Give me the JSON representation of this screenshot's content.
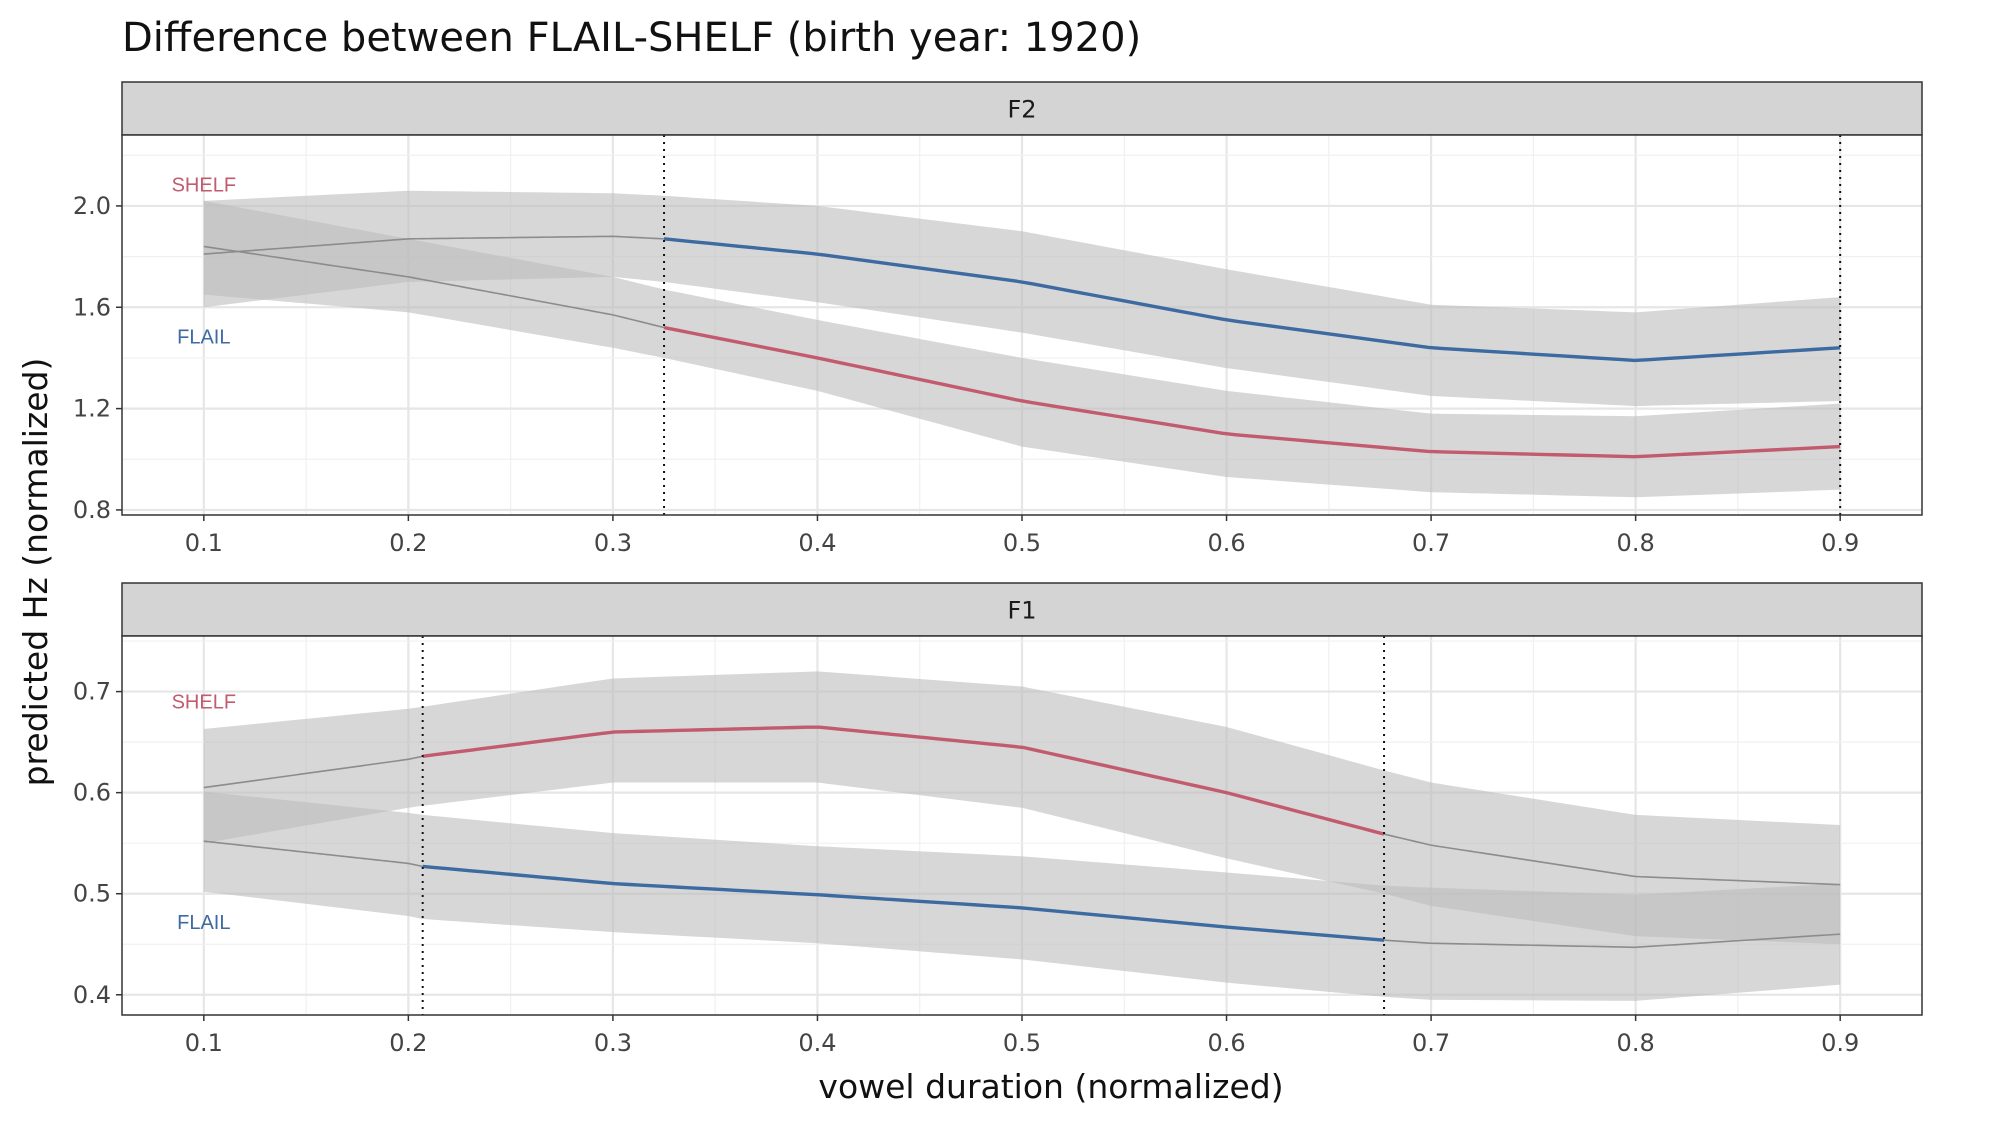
{
  "chart_data": {
    "type": "line",
    "title": "Difference between FLAIL-SHELF (birth year: 1920)",
    "xlabel": "vowel duration (normalized)",
    "ylabel": "predicted Hz (normalized)",
    "xlim": [
      0.06,
      0.94
    ],
    "x_ticks": [
      0.1,
      0.2,
      0.3,
      0.4,
      0.5,
      0.6,
      0.7,
      0.8,
      0.9
    ],
    "x_tick_labels": [
      "0.1",
      "0.2",
      "0.3",
      "0.4",
      "0.5",
      "0.6",
      "0.7",
      "0.8",
      "0.9"
    ],
    "grid": true,
    "colors": {
      "SHELF": "#c25b6e",
      "FLAIL": "#3d6aa1",
      "ribbon": "#bdbdbd",
      "outside": "#8c8c8c"
    },
    "panels": [
      {
        "strip": "F2",
        "ylim": [
          0.78,
          2.28
        ],
        "y_ticks": [
          0.8,
          1.2,
          1.6,
          2.0
        ],
        "y_tick_labels": [
          "0.8",
          "1.2",
          "1.6",
          "2.0"
        ],
        "sig_interval": [
          0.325,
          0.9
        ],
        "labels": [
          {
            "text": "SHELF",
            "series": "SHELF",
            "x": 0.1,
            "y": 2.085
          },
          {
            "text": "FLAIL",
            "series": "FLAIL",
            "x": 0.1,
            "y": 1.485
          }
        ],
        "series": [
          {
            "name": "SHELF",
            "x": [
              0.1,
              0.2,
              0.3,
              0.325,
              0.4,
              0.5,
              0.6,
              0.7,
              0.8,
              0.9
            ],
            "y": [
              1.84,
              1.72,
              1.57,
              1.52,
              1.4,
              1.23,
              1.1,
              1.03,
              1.01,
              1.05
            ],
            "lower": [
              1.65,
              1.58,
              1.44,
              1.4,
              1.27,
              1.05,
              0.93,
              0.87,
              0.85,
              0.88
            ],
            "upper": [
              2.02,
              1.87,
              1.72,
              1.67,
              1.55,
              1.4,
              1.27,
              1.18,
              1.17,
              1.22
            ]
          },
          {
            "name": "FLAIL",
            "x": [
              0.1,
              0.2,
              0.3,
              0.325,
              0.4,
              0.5,
              0.6,
              0.7,
              0.8,
              0.9
            ],
            "y": [
              1.81,
              1.87,
              1.88,
              1.87,
              1.81,
              1.7,
              1.55,
              1.44,
              1.39,
              1.44
            ],
            "lower": [
              1.6,
              1.7,
              1.72,
              1.7,
              1.62,
              1.5,
              1.36,
              1.25,
              1.21,
              1.23
            ],
            "upper": [
              2.02,
              2.06,
              2.05,
              2.04,
              2.0,
              1.9,
              1.75,
              1.61,
              1.58,
              1.64
            ]
          }
        ]
      },
      {
        "strip": "F1",
        "ylim": [
          0.38,
          0.755
        ],
        "y_ticks": [
          0.4,
          0.5,
          0.6,
          0.7
        ],
        "y_tick_labels": [
          "0.4",
          "0.5",
          "0.6",
          "0.7"
        ],
        "sig_interval": [
          0.207,
          0.677
        ],
        "labels": [
          {
            "text": "SHELF",
            "series": "SHELF",
            "x": 0.1,
            "y": 0.69
          },
          {
            "text": "FLAIL",
            "series": "FLAIL",
            "x": 0.1,
            "y": 0.472
          }
        ],
        "series": [
          {
            "name": "SHELF",
            "x": [
              0.1,
              0.2,
              0.207,
              0.3,
              0.4,
              0.5,
              0.6,
              0.677,
              0.7,
              0.8,
              0.9
            ],
            "y": [
              0.605,
              0.633,
              0.636,
              0.66,
              0.665,
              0.645,
              0.6,
              0.559,
              0.548,
              0.517,
              0.509
            ],
            "lower": [
              0.55,
              0.585,
              0.587,
              0.61,
              0.61,
              0.585,
              0.535,
              0.5,
              0.488,
              0.458,
              0.45
            ],
            "upper": [
              0.663,
              0.683,
              0.685,
              0.713,
              0.72,
              0.705,
              0.665,
              0.622,
              0.61,
              0.578,
              0.568
            ]
          },
          {
            "name": "FLAIL",
            "x": [
              0.1,
              0.2,
              0.207,
              0.3,
              0.4,
              0.5,
              0.6,
              0.677,
              0.7,
              0.8,
              0.9
            ],
            "y": [
              0.552,
              0.53,
              0.527,
              0.51,
              0.499,
              0.486,
              0.467,
              0.454,
              0.451,
              0.447,
              0.46
            ],
            "lower": [
              0.502,
              0.478,
              0.475,
              0.462,
              0.451,
              0.435,
              0.412,
              0.398,
              0.395,
              0.394,
              0.41
            ],
            "upper": [
              0.601,
              0.58,
              0.578,
              0.56,
              0.547,
              0.537,
              0.521,
              0.508,
              0.506,
              0.499,
              0.51
            ]
          }
        ]
      }
    ]
  }
}
